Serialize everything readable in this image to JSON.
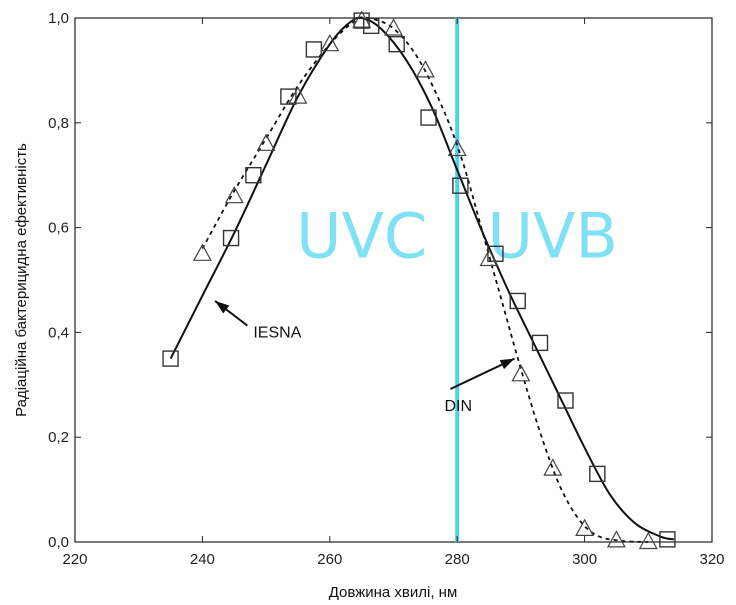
{
  "chart_data": {
    "type": "line",
    "xlabel": "Довжина хвилі, нм",
    "ylabel": "Радіаційна бактерицидна ефективність",
    "xlim": [
      220,
      320
    ],
    "ylim": [
      0,
      1.0
    ],
    "x_ticks": [
      220,
      240,
      260,
      280,
      300,
      320
    ],
    "x_tick_labels": [
      "220",
      "240",
      "260",
      "280",
      "300",
      "320"
    ],
    "y_ticks": [
      0,
      0.2,
      0.4,
      0.6,
      0.8,
      1.0
    ],
    "y_tick_labels": [
      "0,0",
      "0,2",
      "0,4",
      "0,6",
      "0,8",
      "1,0"
    ],
    "grid": false,
    "vertical_line": {
      "x": 280,
      "color": "#49d3ec"
    },
    "regions": [
      {
        "label": "UVC",
        "x": 265,
        "y": 0.585,
        "color": "#7fe1f3"
      },
      {
        "label": "UVB",
        "x": 295,
        "y": 0.585,
        "color": "#7fe1f3"
      }
    ],
    "annotations": [
      {
        "text": "IESNA",
        "x": 248,
        "y": 0.39,
        "arrow_to": [
          242,
          0.46
        ]
      },
      {
        "text": "DIN",
        "x": 278,
        "y": 0.25,
        "arrow_to": [
          289,
          0.35
        ]
      }
    ],
    "series": [
      {
        "name": "IESNA",
        "marker": "square",
        "style": "solid",
        "points": [
          [
            235,
            0.35
          ],
          [
            244.5,
            0.58
          ],
          [
            248,
            0.7
          ],
          [
            253.5,
            0.85
          ],
          [
            257.5,
            0.94
          ],
          [
            265,
            0.995
          ],
          [
            266.5,
            0.985
          ],
          [
            270.5,
            0.95
          ],
          [
            275.5,
            0.81
          ],
          [
            280.5,
            0.68
          ],
          [
            286,
            0.55
          ],
          [
            289.5,
            0.46
          ],
          [
            293,
            0.38
          ],
          [
            297,
            0.27
          ],
          [
            302,
            0.13
          ],
          [
            313,
            0.005
          ]
        ],
        "curve": [
          [
            235,
            0.35
          ],
          [
            240,
            0.47
          ],
          [
            245,
            0.59
          ],
          [
            250,
            0.72
          ],
          [
            255,
            0.85
          ],
          [
            260,
            0.95
          ],
          [
            263,
            0.99
          ],
          [
            265,
            1.0
          ],
          [
            268,
            0.98
          ],
          [
            272,
            0.92
          ],
          [
            276,
            0.83
          ],
          [
            280,
            0.71
          ],
          [
            284,
            0.59
          ],
          [
            288,
            0.48
          ],
          [
            292,
            0.38
          ],
          [
            296,
            0.28
          ],
          [
            300,
            0.18
          ],
          [
            304,
            0.09
          ],
          [
            308,
            0.035
          ],
          [
            312,
            0.01
          ],
          [
            314,
            0.005
          ]
        ]
      },
      {
        "name": "DIN",
        "marker": "triangle",
        "style": "dashed",
        "points": [
          [
            240,
            0.55
          ],
          [
            245,
            0.66
          ],
          [
            250,
            0.76
          ],
          [
            255,
            0.85
          ],
          [
            260,
            0.95
          ],
          [
            265,
            0.995
          ],
          [
            270,
            0.98
          ],
          [
            275,
            0.9
          ],
          [
            280,
            0.75
          ],
          [
            285,
            0.54
          ],
          [
            290,
            0.32
          ],
          [
            295,
            0.14
          ],
          [
            300,
            0.025
          ],
          [
            305,
            0.003
          ],
          [
            310,
            0.0
          ]
        ],
        "curve": [
          [
            240,
            0.56
          ],
          [
            245,
            0.67
          ],
          [
            250,
            0.77
          ],
          [
            255,
            0.87
          ],
          [
            260,
            0.95
          ],
          [
            264,
            0.995
          ],
          [
            266,
            1.0
          ],
          [
            270,
            0.98
          ],
          [
            274,
            0.92
          ],
          [
            278,
            0.82
          ],
          [
            281,
            0.72
          ],
          [
            284,
            0.59
          ],
          [
            287,
            0.46
          ],
          [
            290,
            0.33
          ],
          [
            293,
            0.21
          ],
          [
            296,
            0.11
          ],
          [
            299,
            0.045
          ],
          [
            302,
            0.012
          ],
          [
            306,
            0.002
          ],
          [
            310,
            0.0
          ]
        ]
      }
    ]
  }
}
